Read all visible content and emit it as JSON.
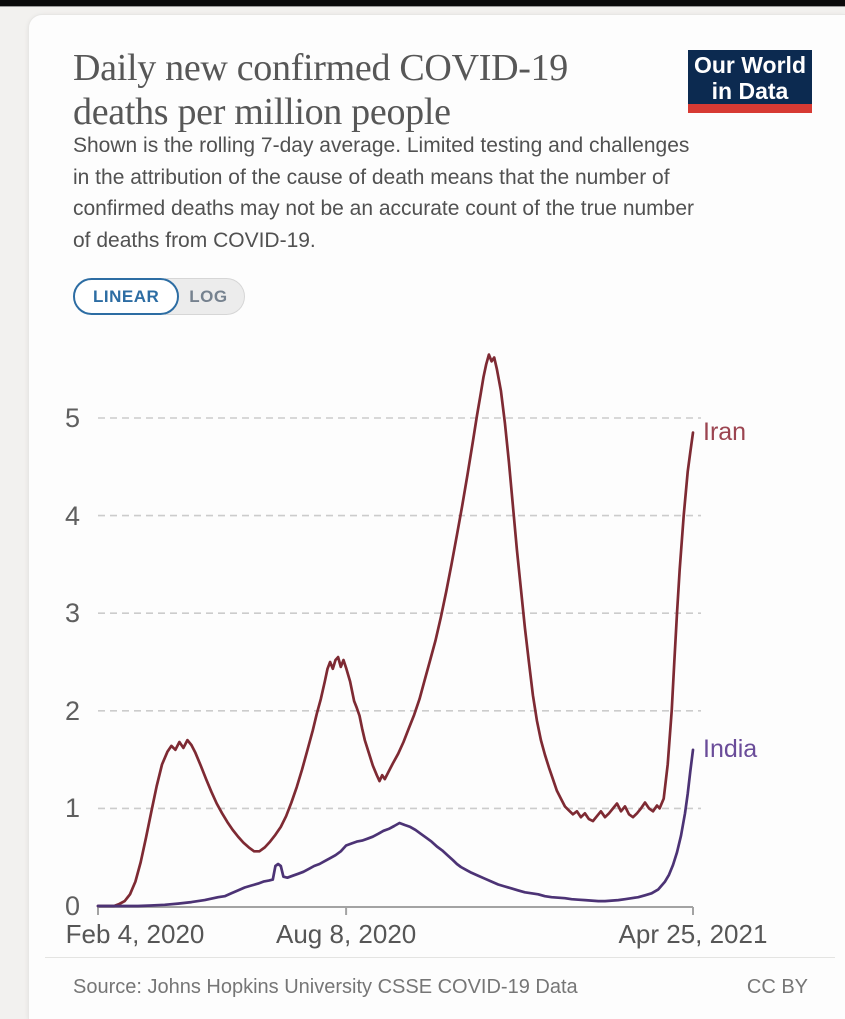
{
  "header": {
    "logo": {
      "line1": "Our World",
      "line2": "in Data",
      "bg_color": "#0c2a50",
      "accent_color": "#d73a33"
    }
  },
  "controls": {
    "scale_toggle": {
      "options": [
        "LINEAR",
        "LOG"
      ],
      "active": "LINEAR",
      "active_color": "#2d6da3"
    }
  },
  "chart_data": {
    "type": "line",
    "title": "Daily new confirmed COVID-19 deaths per million people",
    "subtitle": "Shown is the rolling 7-day average. Limited testing and challenges in the attribution of the cause of death means that the number of confirmed deaths may not be an accurate count of the true number of deaths from COVID-19.",
    "grid": "dashed-horizontal",
    "legend_position": "end-of-line-labels",
    "ylim": [
      0,
      5.8
    ],
    "y_ticks": [
      0,
      1,
      2,
      3,
      4,
      5
    ],
    "x_domain_days": 446,
    "x_ticks": [
      {
        "label": "Feb 4, 2020",
        "day": 0
      },
      {
        "label": "Aug 8, 2020",
        "day": 186
      },
      {
        "label": "Apr 25, 2021",
        "day": 446
      }
    ],
    "series": [
      {
        "name": "Iran",
        "color": "#7e2a33",
        "label_color": "#9b4450",
        "points": [
          [
            0,
            0
          ],
          [
            12,
            0
          ],
          [
            16,
            0.02
          ],
          [
            20,
            0.05
          ],
          [
            24,
            0.12
          ],
          [
            28,
            0.25
          ],
          [
            32,
            0.45
          ],
          [
            36,
            0.7
          ],
          [
            40,
            0.97
          ],
          [
            44,
            1.23
          ],
          [
            48,
            1.45
          ],
          [
            52,
            1.58
          ],
          [
            55,
            1.64
          ],
          [
            58,
            1.6
          ],
          [
            61,
            1.68
          ],
          [
            64,
            1.62
          ],
          [
            67,
            1.7
          ],
          [
            70,
            1.65
          ],
          [
            73,
            1.57
          ],
          [
            77,
            1.44
          ],
          [
            81,
            1.3
          ],
          [
            85,
            1.17
          ],
          [
            89,
            1.05
          ],
          [
            93,
            0.95
          ],
          [
            97,
            0.86
          ],
          [
            101,
            0.78
          ],
          [
            105,
            0.71
          ],
          [
            109,
            0.65
          ],
          [
            113,
            0.6
          ],
          [
            117,
            0.56
          ],
          [
            121,
            0.56
          ],
          [
            125,
            0.6
          ],
          [
            129,
            0.66
          ],
          [
            133,
            0.73
          ],
          [
            137,
            0.81
          ],
          [
            141,
            0.92
          ],
          [
            145,
            1.06
          ],
          [
            149,
            1.22
          ],
          [
            153,
            1.4
          ],
          [
            157,
            1.6
          ],
          [
            161,
            1.8
          ],
          [
            164,
            1.97
          ],
          [
            167,
            2.12
          ],
          [
            170,
            2.3
          ],
          [
            172,
            2.43
          ],
          [
            174,
            2.5
          ],
          [
            176,
            2.43
          ],
          [
            178,
            2.52
          ],
          [
            180,
            2.55
          ],
          [
            182,
            2.45
          ],
          [
            184,
            2.52
          ],
          [
            186,
            2.44
          ],
          [
            189,
            2.3
          ],
          [
            192,
            2.1
          ],
          [
            194,
            2.03
          ],
          [
            196,
            1.95
          ],
          [
            198,
            1.82
          ],
          [
            200,
            1.7
          ],
          [
            203,
            1.57
          ],
          [
            206,
            1.44
          ],
          [
            209,
            1.34
          ],
          [
            211,
            1.28
          ],
          [
            213,
            1.34
          ],
          [
            215,
            1.3
          ],
          [
            218,
            1.38
          ],
          [
            221,
            1.46
          ],
          [
            225,
            1.56
          ],
          [
            229,
            1.68
          ],
          [
            233,
            1.82
          ],
          [
            237,
            1.96
          ],
          [
            241,
            2.12
          ],
          [
            245,
            2.32
          ],
          [
            249,
            2.52
          ],
          [
            253,
            2.72
          ],
          [
            257,
            2.96
          ],
          [
            261,
            3.22
          ],
          [
            265,
            3.5
          ],
          [
            269,
            3.8
          ],
          [
            273,
            4.1
          ],
          [
            277,
            4.42
          ],
          [
            281,
            4.76
          ],
          [
            284,
            5.02
          ],
          [
            287,
            5.26
          ],
          [
            289,
            5.42
          ],
          [
            291,
            5.55
          ],
          [
            293,
            5.65
          ],
          [
            295,
            5.58
          ],
          [
            297,
            5.62
          ],
          [
            299,
            5.5
          ],
          [
            302,
            5.28
          ],
          [
            305,
            4.95
          ],
          [
            308,
            4.55
          ],
          [
            311,
            4.1
          ],
          [
            314,
            3.65
          ],
          [
            317,
            3.25
          ],
          [
            320,
            2.85
          ],
          [
            323,
            2.5
          ],
          [
            326,
            2.16
          ],
          [
            329,
            1.9
          ],
          [
            332,
            1.7
          ],
          [
            335,
            1.55
          ],
          [
            338,
            1.42
          ],
          [
            341,
            1.3
          ],
          [
            344,
            1.18
          ],
          [
            347,
            1.1
          ],
          [
            350,
            1.02
          ],
          [
            353,
            0.98
          ],
          [
            356,
            0.94
          ],
          [
            359,
            0.97
          ],
          [
            362,
            0.91
          ],
          [
            365,
            0.95
          ],
          [
            368,
            0.89
          ],
          [
            371,
            0.87
          ],
          [
            374,
            0.92
          ],
          [
            377,
            0.97
          ],
          [
            380,
            0.91
          ],
          [
            383,
            0.95
          ],
          [
            386,
            1.0
          ],
          [
            389,
            1.05
          ],
          [
            392,
            0.97
          ],
          [
            395,
            1.02
          ],
          [
            398,
            0.94
          ],
          [
            401,
            0.91
          ],
          [
            404,
            0.95
          ],
          [
            407,
            1.0
          ],
          [
            410,
            1.06
          ],
          [
            413,
            1.0
          ],
          [
            416,
            0.97
          ],
          [
            419,
            1.03
          ],
          [
            421,
            1.0
          ],
          [
            424,
            1.1
          ],
          [
            427,
            1.45
          ],
          [
            430,
            2.0
          ],
          [
            432,
            2.5
          ],
          [
            434,
            3.0
          ],
          [
            436,
            3.45
          ],
          [
            439,
            4.0
          ],
          [
            442,
            4.45
          ],
          [
            444,
            4.65
          ],
          [
            446,
            4.85
          ]
        ]
      },
      {
        "name": "India",
        "color": "#4c3375",
        "label_color": "#6a4c99",
        "points": [
          [
            0,
            0
          ],
          [
            30,
            0
          ],
          [
            40,
            0.005
          ],
          [
            50,
            0.012
          ],
          [
            60,
            0.025
          ],
          [
            70,
            0.04
          ],
          [
            80,
            0.06
          ],
          [
            90,
            0.09
          ],
          [
            95,
            0.1
          ],
          [
            100,
            0.13
          ],
          [
            105,
            0.16
          ],
          [
            110,
            0.19
          ],
          [
            115,
            0.21
          ],
          [
            120,
            0.23
          ],
          [
            124,
            0.25
          ],
          [
            128,
            0.26
          ],
          [
            131,
            0.27
          ],
          [
            133,
            0.41
          ],
          [
            135,
            0.43
          ],
          [
            137,
            0.41
          ],
          [
            139,
            0.3
          ],
          [
            142,
            0.29
          ],
          [
            146,
            0.31
          ],
          [
            150,
            0.33
          ],
          [
            154,
            0.35
          ],
          [
            158,
            0.38
          ],
          [
            162,
            0.41
          ],
          [
            166,
            0.43
          ],
          [
            170,
            0.46
          ],
          [
            174,
            0.49
          ],
          [
            178,
            0.52
          ],
          [
            182,
            0.56
          ],
          [
            186,
            0.62
          ],
          [
            190,
            0.64
          ],
          [
            194,
            0.66
          ],
          [
            198,
            0.67
          ],
          [
            202,
            0.69
          ],
          [
            206,
            0.71
          ],
          [
            210,
            0.74
          ],
          [
            214,
            0.77
          ],
          [
            218,
            0.79
          ],
          [
            222,
            0.82
          ],
          [
            226,
            0.85
          ],
          [
            230,
            0.83
          ],
          [
            234,
            0.81
          ],
          [
            238,
            0.78
          ],
          [
            242,
            0.74
          ],
          [
            246,
            0.7
          ],
          [
            250,
            0.66
          ],
          [
            254,
            0.61
          ],
          [
            258,
            0.57
          ],
          [
            262,
            0.52
          ],
          [
            266,
            0.47
          ],
          [
            269,
            0.43
          ],
          [
            272,
            0.4
          ],
          [
            276,
            0.37
          ],
          [
            280,
            0.34
          ],
          [
            285,
            0.31
          ],
          [
            290,
            0.28
          ],
          [
            295,
            0.25
          ],
          [
            300,
            0.22
          ],
          [
            305,
            0.2
          ],
          [
            310,
            0.18
          ],
          [
            315,
            0.16
          ],
          [
            320,
            0.14
          ],
          [
            325,
            0.13
          ],
          [
            330,
            0.12
          ],
          [
            335,
            0.1
          ],
          [
            340,
            0.09
          ],
          [
            345,
            0.085
          ],
          [
            350,
            0.08
          ],
          [
            355,
            0.07
          ],
          [
            360,
            0.065
          ],
          [
            365,
            0.06
          ],
          [
            370,
            0.055
          ],
          [
            375,
            0.05
          ],
          [
            380,
            0.05
          ],
          [
            385,
            0.055
          ],
          [
            390,
            0.06
          ],
          [
            395,
            0.07
          ],
          [
            400,
            0.08
          ],
          [
            405,
            0.09
          ],
          [
            410,
            0.11
          ],
          [
            415,
            0.13
          ],
          [
            420,
            0.17
          ],
          [
            425,
            0.25
          ],
          [
            428,
            0.32
          ],
          [
            431,
            0.42
          ],
          [
            434,
            0.55
          ],
          [
            437,
            0.72
          ],
          [
            440,
            0.95
          ],
          [
            442,
            1.15
          ],
          [
            444,
            1.38
          ],
          [
            446,
            1.6
          ]
        ]
      }
    ]
  },
  "footer": {
    "source": "Source: Johns Hopkins University CSSE COVID-19 Data",
    "license": "CC BY"
  }
}
